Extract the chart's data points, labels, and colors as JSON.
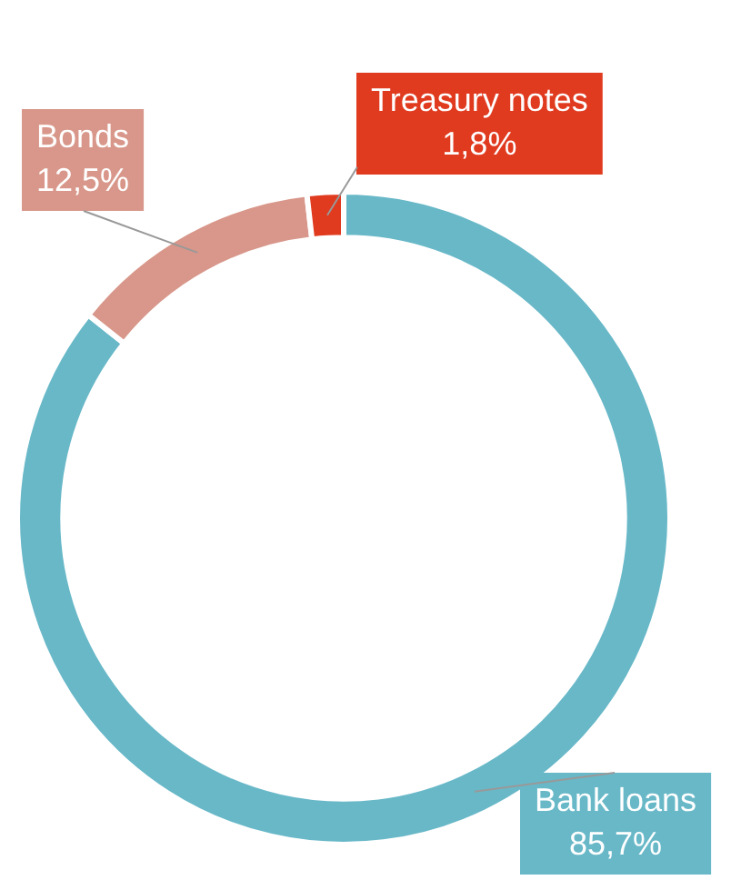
{
  "chart_data": {
    "type": "donut",
    "categories": [
      "Bank loans",
      "Bonds",
      "Treasury notes"
    ],
    "values": [
      85.7,
      12.5,
      1.8
    ],
    "colors": [
      "#68b8c8",
      "#d8978a",
      "#e03a1f"
    ],
    "value_labels": [
      "85,7%",
      "12,5%",
      "1,8%"
    ]
  }
}
